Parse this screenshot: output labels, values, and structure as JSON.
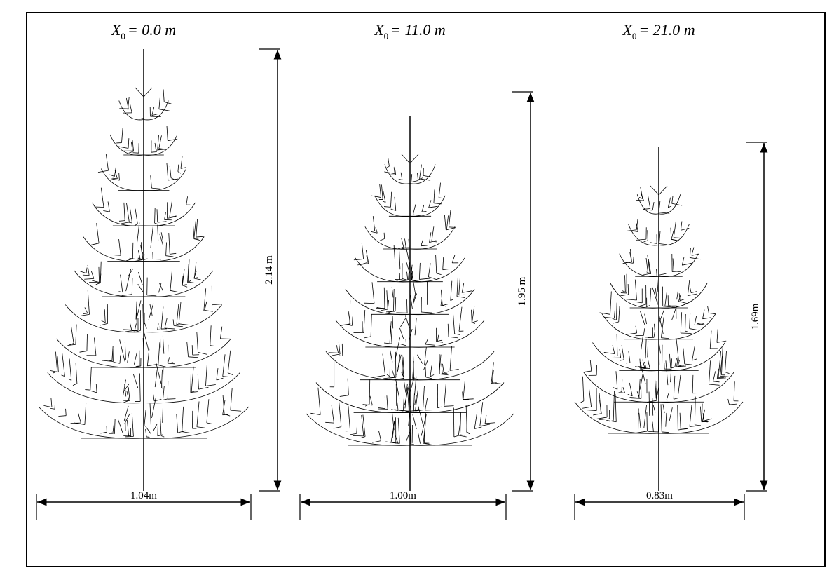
{
  "trees": [
    {
      "title": {
        "symbol": "X",
        "subscript": "0",
        "rest": "= 0.0 m"
      },
      "height_label": "2.14 m",
      "width_label": "1.04m"
    },
    {
      "title": {
        "symbol": "X",
        "subscript": "0",
        "rest": "= 11.0 m"
      },
      "height_label": "1.95 m",
      "width_label": "1.00m"
    },
    {
      "title": {
        "symbol": "X",
        "subscript": "0",
        "rest": "= 21.0 m"
      },
      "height_label": "1.69m",
      "width_label": "0.83m"
    }
  ]
}
